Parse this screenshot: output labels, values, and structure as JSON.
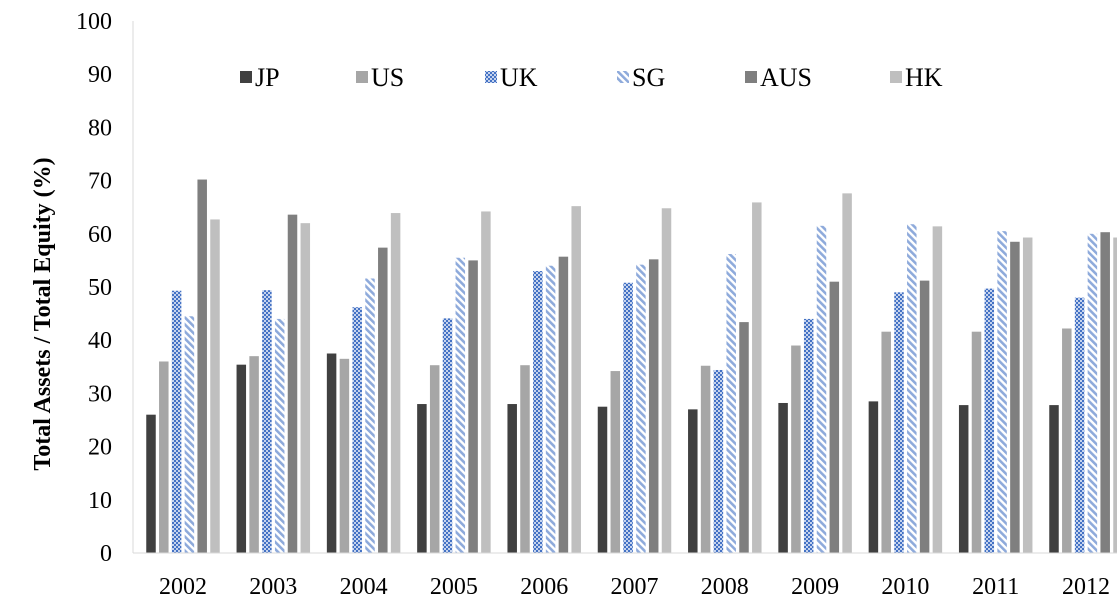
{
  "chart_data": {
    "type": "bar",
    "title": "",
    "xlabel": "",
    "ylabel": "Total Assets / Total Equity (%)",
    "ylim": [
      0,
      100
    ],
    "yticks": [
      0,
      10,
      20,
      30,
      40,
      50,
      60,
      70,
      80,
      90,
      100
    ],
    "grid": false,
    "legend_position": "top",
    "categories": [
      "2002",
      "2003",
      "2004",
      "2005",
      "2006",
      "2007",
      "2008",
      "2009",
      "2010",
      "2011",
      "2012"
    ],
    "series": [
      {
        "name": "JP",
        "color": "#404040",
        "pattern": "solid",
        "values": [
          26,
          35.4,
          37.5,
          28,
          28,
          27.5,
          27,
          28.2,
          28.5,
          27.8,
          27.8
        ]
      },
      {
        "name": "US",
        "color": "#a6a6a6",
        "pattern": "solid",
        "values": [
          36,
          37,
          36.5,
          35.3,
          35.3,
          34.2,
          35.2,
          39,
          41.6,
          41.6,
          42.2
        ]
      },
      {
        "name": "UK",
        "color": "#4472c4",
        "pattern": "checker",
        "values": [
          49.3,
          49.4,
          46.2,
          44.1,
          53,
          50.8,
          34.4,
          44,
          49,
          49.7,
          48
        ]
      },
      {
        "name": "SG",
        "color": "#8eaadb",
        "pattern": "diagonal",
        "values": [
          44.5,
          44,
          51.6,
          55.5,
          54,
          54.2,
          56.2,
          61.5,
          61.8,
          60.5,
          60
        ]
      },
      {
        "name": "AUS",
        "color": "#7f7f7f",
        "pattern": "solid",
        "values": [
          70.2,
          63.6,
          57.4,
          55,
          55.7,
          55.2,
          43.4,
          51,
          51.2,
          58.5,
          60.3
        ]
      },
      {
        "name": "HK",
        "color": "#bfbfbf",
        "pattern": "solid",
        "values": [
          62.7,
          62,
          63.9,
          64.2,
          65.2,
          64.8,
          65.9,
          67.6,
          61.4,
          59.3,
          59.3
        ]
      }
    ]
  }
}
